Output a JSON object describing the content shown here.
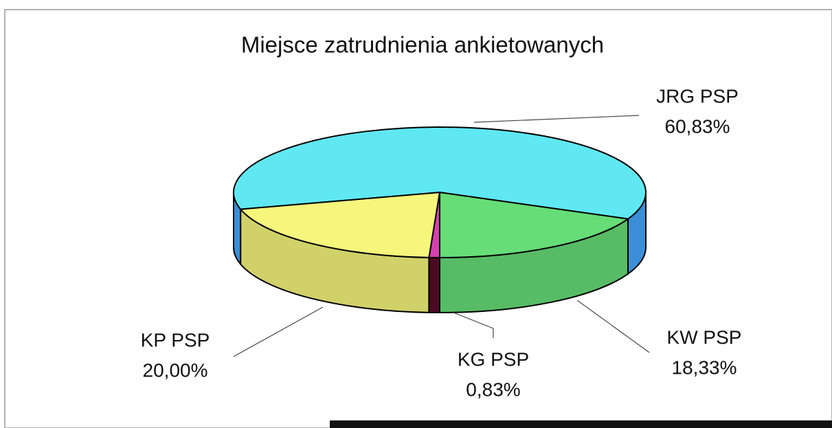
{
  "chart_data": {
    "type": "pie3d",
    "title": "Miejsce zatrudnienia ankietowanych",
    "categories": [
      "JRG PSP",
      "KW PSP",
      "KG PSP",
      "KP PSP"
    ],
    "values": [
      60.83,
      18.33,
      0.83,
      20.0
    ],
    "value_labels": [
      "60,83%",
      "18,33%",
      "0,83%",
      "20,00%"
    ],
    "colors": [
      "#5fe8f2",
      "#66dd77",
      "#d63fb0",
      "#f6f67c"
    ]
  }
}
